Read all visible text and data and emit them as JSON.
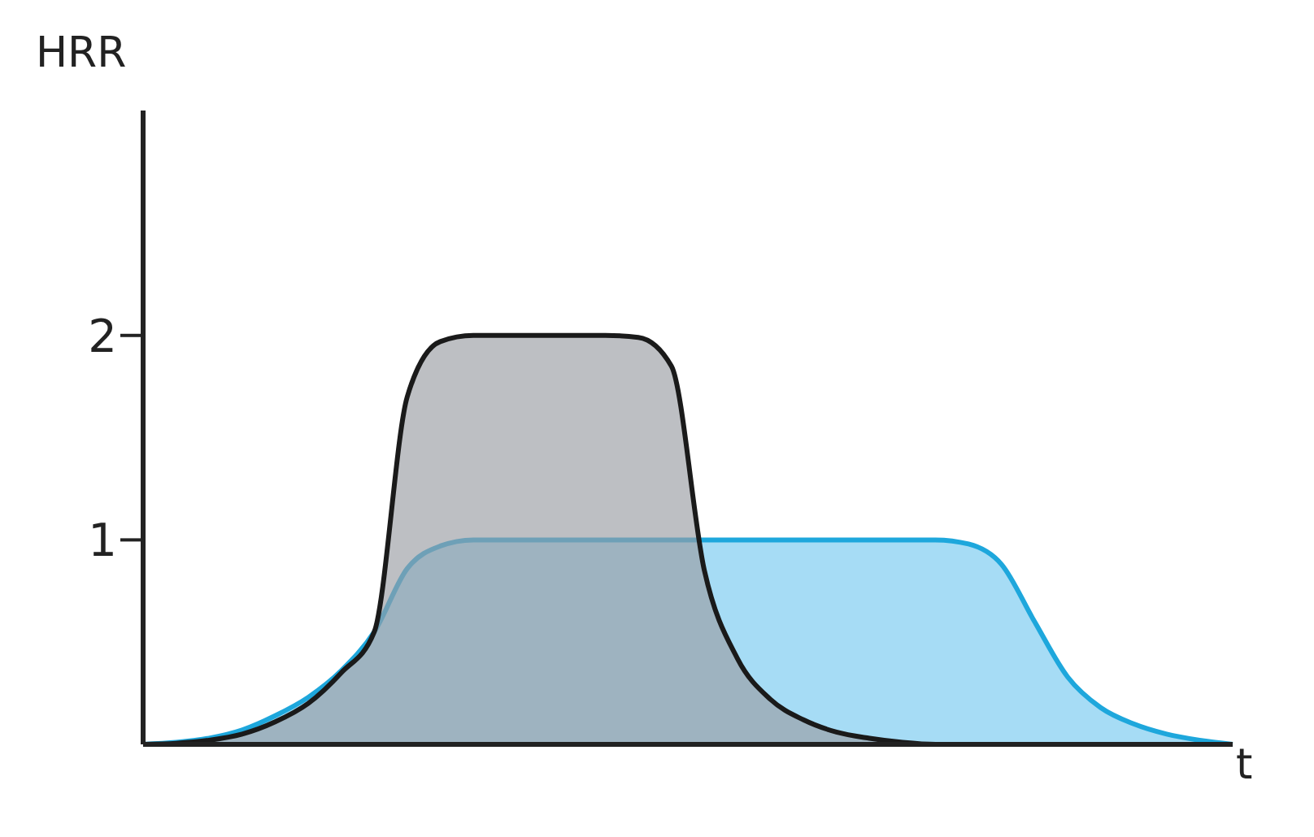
{
  "chart_data": {
    "type": "area",
    "xlabel": "t",
    "ylabel": "HRR",
    "tick_labels": "y",
    "categories": [
      null,
      null,
      null,
      null,
      null,
      null,
      null,
      null,
      null,
      null,
      null,
      null,
      null,
      null,
      null,
      null,
      null,
      null,
      null,
      null,
      null,
      null,
      null,
      null,
      null,
      null,
      null,
      null,
      null,
      null,
      null,
      null,
      null,
      null
    ],
    "series": [
      {
        "color": "#1ea7dc",
        "values": [
          0,
          0.01,
          0.03,
          0.07,
          0.14,
          0.23,
          0.36,
          0.55,
          0.86,
          0.97,
          1,
          1,
          1,
          1,
          1,
          1,
          1,
          1,
          1,
          1,
          1,
          1,
          1,
          1,
          1,
          0.98,
          0.88,
          0.6,
          0.33,
          0.18,
          0.1,
          0.05,
          0.02,
          0
        ]
      },
      {
        "color": "#1a1a1a",
        "values": [
          0,
          0.005,
          0.02,
          0.05,
          0.11,
          0.2,
          0.35,
          0.55,
          1.7,
          1.97,
          2,
          2,
          2,
          2,
          2,
          1.99,
          1.85,
          0.85,
          0.42,
          0.22,
          0.12,
          0.06,
          0.03,
          0.01,
          0,
          0,
          0,
          0,
          0,
          0,
          0,
          0,
          0,
          0
        ]
      }
    ],
    "ylim": [
      0,
      3.1
    ],
    "yticks": [
      1,
      2
    ]
  }
}
